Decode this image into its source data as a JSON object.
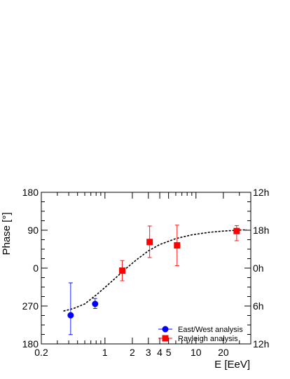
{
  "chart_data": {
    "type": "scatter",
    "xlabel": "E [EeV]",
    "ylabel": "Phase [°]",
    "x_scale": "log",
    "xlim": [
      0.2,
      40
    ],
    "x_ticks": [
      {
        "value": 0.2,
        "label": "0.2"
      },
      {
        "value": 1,
        "label": "1"
      },
      {
        "value": 2,
        "label": "2"
      },
      {
        "value": 3,
        "label": "3"
      },
      {
        "value": 4,
        "label": "4"
      },
      {
        "value": 5,
        "label": "5"
      },
      {
        "value": 10,
        "label": "10"
      },
      {
        "value": 20,
        "label": "20"
      }
    ],
    "y_ticks_left": [
      {
        "label": "180",
        "level": 0
      },
      {
        "label": "90",
        "level": 1
      },
      {
        "label": "0",
        "level": 2
      },
      {
        "label": "270",
        "level": 3
      },
      {
        "label": "180",
        "level": 4
      }
    ],
    "y_ticks_right": [
      {
        "label": "12h",
        "level": 0
      },
      {
        "label": "18h",
        "level": 1
      },
      {
        "label": "0h",
        "level": 2
      },
      {
        "label": "6h",
        "level": 3
      },
      {
        "label": "12h",
        "level": 4
      }
    ],
    "series": [
      {
        "name": "East/West analysis",
        "marker": "circle",
        "color": "#0000ff",
        "points": [
          {
            "x": 0.42,
            "y": 248,
            "err_low": 46,
            "err_high": 77
          },
          {
            "x": 0.78,
            "y": 275,
            "err_low": 11,
            "err_high": 13
          }
        ]
      },
      {
        "name": "Rayleigh analysis",
        "marker": "square",
        "color": "#ff0000",
        "points": [
          {
            "x": 1.55,
            "y": -6,
            "err_low": 24,
            "err_high": 24
          },
          {
            "x": 3.1,
            "y": 62,
            "err_low": 37,
            "err_high": 38
          },
          {
            "x": 6.2,
            "y": 54,
            "err_low": 48,
            "err_high": 48
          },
          {
            "x": 28,
            "y": 88,
            "err_low": 23,
            "err_high": 13
          }
        ]
      }
    ],
    "fit_curve": {
      "style": "dashed",
      "color": "#000000",
      "x": [
        0.35,
        0.45,
        0.6,
        0.8,
        1.0,
        1.3,
        1.7,
        2.2,
        3.0,
        4.0,
        6.0,
        9.0,
        14.0,
        20.0,
        28.0,
        36.0
      ],
      "y": [
        -102,
        -96,
        -85,
        -64,
        -46,
        -24,
        -1,
        19,
        41,
        56,
        70,
        79,
        85,
        88,
        90,
        91
      ]
    },
    "legend": {
      "position": "bottom-right"
    },
    "grid": false
  }
}
